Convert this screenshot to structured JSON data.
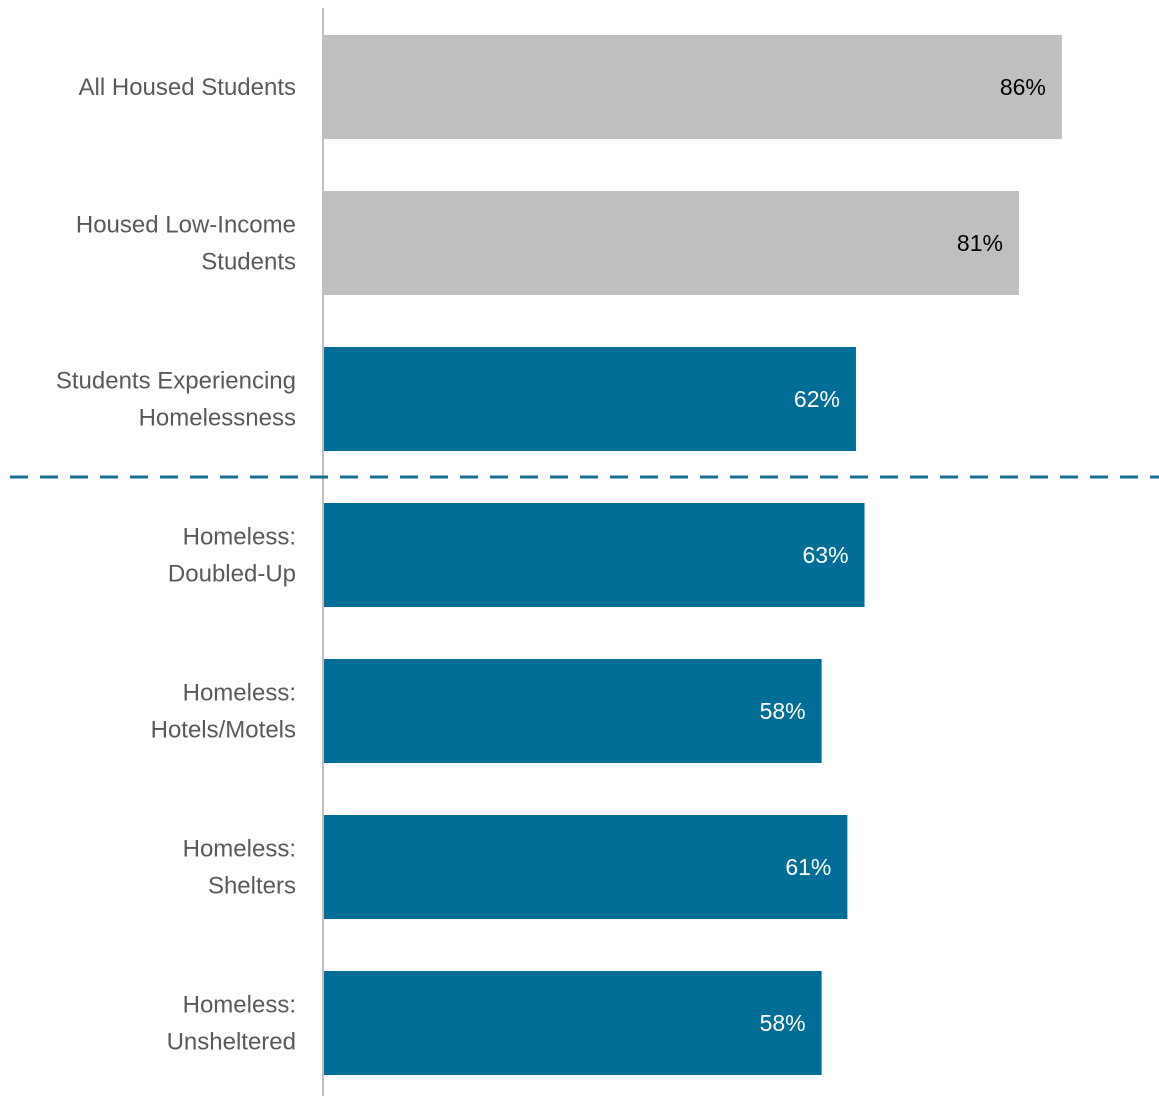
{
  "chart_data": {
    "type": "bar",
    "orientation": "horizontal",
    "title": "",
    "xlabel": "",
    "ylabel": "",
    "xlim": [
      0,
      100
    ],
    "grid": false,
    "legend": "none",
    "categories": [
      [
        "All Housed Students"
      ],
      [
        "Housed Low-Income",
        "Students"
      ],
      [
        "Students Experiencing",
        "Homelessness"
      ],
      [
        "Homeless:",
        "Doubled-Up"
      ],
      [
        "Homeless:",
        "Hotels/Motels"
      ],
      [
        "Homeless:",
        "Shelters"
      ],
      [
        "Homeless:",
        "Unsheltered"
      ]
    ],
    "values": [
      86,
      81,
      62,
      63,
      58,
      61,
      58
    ],
    "data_labels": [
      "86%",
      "81%",
      "62%",
      "63%",
      "58%",
      "61%",
      "58%"
    ],
    "bar_colors": [
      "#bfbfbf",
      "#bfbfbf",
      "#006e96",
      "#006e96",
      "#006e96",
      "#006e96",
      "#006e96"
    ],
    "label_colors": [
      "#000000",
      "#000000",
      "#ffffff",
      "#ffffff",
      "#ffffff",
      "#ffffff",
      "#ffffff"
    ],
    "category_label_color": "#595959",
    "axis_color": "#bfbfbf",
    "separator": {
      "after_index": 2,
      "style": "dashed",
      "color": "#1a6f94"
    }
  }
}
